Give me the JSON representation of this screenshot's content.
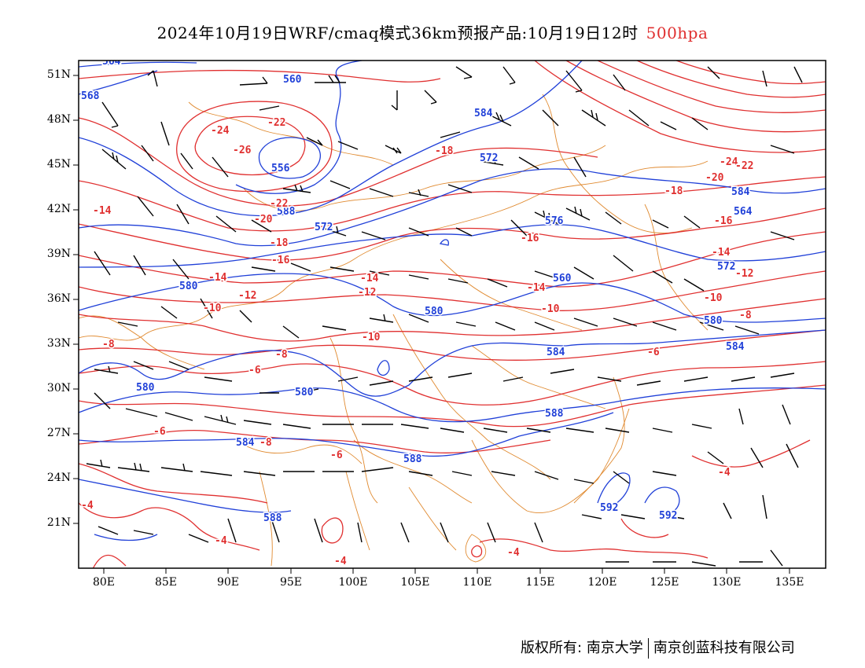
{
  "header": {
    "title": "2024年10月19日WRF/cmaq模式36km预报产品:10月19日12时",
    "level": "500hpa"
  },
  "axes": {
    "lat_labels": [
      "51N",
      "48N",
      "45N",
      "42N",
      "39N",
      "36N",
      "33N",
      "30N",
      "27N",
      "24N",
      "21N"
    ],
    "lon_labels": [
      "80E",
      "85E",
      "90E",
      "95E",
      "100E",
      "105E",
      "110E",
      "115E",
      "120E",
      "125E",
      "130E",
      "135E"
    ]
  },
  "colors": {
    "height_contour": "#2040d8",
    "temp_contour": "#e03030",
    "border": "#e08a30",
    "wind_barb": "#000000"
  },
  "map": {
    "height_labels": [
      "564",
      "560",
      "568",
      "584",
      "556",
      "572",
      "588",
      "576",
      "580",
      "584",
      "580",
      "560",
      "564",
      "572",
      "588",
      "584",
      "580",
      "584",
      "588",
      "580",
      "588",
      "592",
      "592",
      "580",
      "584",
      "572"
    ],
    "temp_labels": [
      "-24",
      "-22",
      "-26",
      "-18",
      "-22",
      "-20",
      "-18",
      "-16",
      "-14",
      "-12",
      "-10",
      "-8",
      "-6",
      "-10",
      "-8",
      "-6",
      "-8",
      "-6",
      "-14",
      "-12",
      "-10",
      "-14",
      "-16",
      "-18",
      "-20",
      "-24",
      "-22",
      "-16",
      "-14",
      "-12",
      "-10",
      "-8",
      "-6",
      "-4",
      "-4",
      "-4",
      "-4",
      "-4",
      "-14"
    ]
  },
  "footer": {
    "copyright": "版权所有: 南京大学",
    "company": "南京创蓝科技有限公司"
  }
}
